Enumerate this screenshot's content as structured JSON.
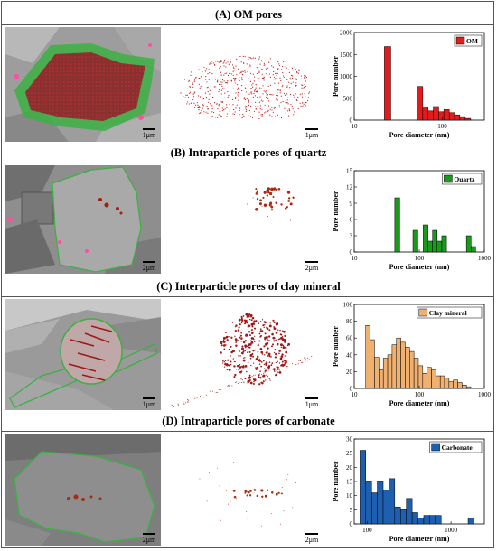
{
  "panels": [
    {
      "id": "A",
      "title": "(A) OM pores",
      "scale_bar": "1μm",
      "scale_bar_map": "1μm",
      "overlay_color": "#3cb043",
      "pore_color": "#cc2222",
      "chart_data": {
        "type": "bar",
        "xscale": "log",
        "xlim": [
          10,
          300
        ],
        "ylim": [
          0,
          2000
        ],
        "xticks": [
          "10",
          "100"
        ],
        "yticks": [
          "0",
          "500",
          "1000",
          "1500",
          "2000"
        ],
        "xlabel": "Pore diameter (nm)",
        "ylabel": "Pore number",
        "legend": "OM",
        "legend_position": "top-right",
        "color": "#e41a1c",
        "bins": [
          {
            "x0": 22,
            "x1": 26,
            "value": 1680
          },
          {
            "x0": 52,
            "x1": 60,
            "value": 770
          },
          {
            "x0": 60,
            "x1": 69,
            "value": 300
          },
          {
            "x0": 69,
            "x1": 79,
            "value": 210
          },
          {
            "x0": 79,
            "x1": 91,
            "value": 310
          },
          {
            "x0": 91,
            "x1": 104,
            "value": 190
          },
          {
            "x0": 104,
            "x1": 120,
            "value": 240
          },
          {
            "x0": 120,
            "x1": 138,
            "value": 170
          },
          {
            "x0": 138,
            "x1": 158,
            "value": 120
          },
          {
            "x0": 158,
            "x1": 182,
            "value": 80
          },
          {
            "x0": 182,
            "x1": 210,
            "value": 40
          }
        ]
      }
    },
    {
      "id": "B",
      "title": "(B) Intraparticle pores of quartz",
      "scale_bar": "2μm",
      "scale_bar_map": "2μm",
      "overlay_color": "#3cb043",
      "pore_color": "#aa2a10",
      "chart_data": {
        "type": "bar",
        "xscale": "log",
        "xlim": [
          10,
          1000
        ],
        "ylim": [
          0,
          15
        ],
        "xticks": [
          "10",
          "100",
          "1000"
        ],
        "yticks": [
          "0",
          "3",
          "6",
          "9",
          "12",
          "15"
        ],
        "xlabel": "Pore diameter (nm)",
        "ylabel": "Pore number",
        "legend": "Quartz",
        "legend_position": "top-right",
        "color": "#1a9a1a",
        "bins": [
          {
            "x0": 42,
            "x1": 50,
            "value": 10
          },
          {
            "x0": 80,
            "x1": 95,
            "value": 4
          },
          {
            "x0": 115,
            "x1": 136,
            "value": 5
          },
          {
            "x0": 136,
            "x1": 160,
            "value": 2
          },
          {
            "x0": 160,
            "x1": 188,
            "value": 4
          },
          {
            "x0": 188,
            "x1": 222,
            "value": 2
          },
          {
            "x0": 222,
            "x1": 262,
            "value": 3
          },
          {
            "x0": 530,
            "x1": 625,
            "value": 3
          },
          {
            "x0": 625,
            "x1": 735,
            "value": 1
          }
        ]
      }
    },
    {
      "id": "C",
      "title": "(C) Interparticle pores of clay mineral",
      "scale_bar": "1μm",
      "scale_bar_map": "1μm",
      "overlay_color": "#3cb043",
      "pore_color": "#a01818",
      "chart_data": {
        "type": "bar",
        "xscale": "log",
        "xlim": [
          10,
          1000
        ],
        "ylim": [
          0,
          100
        ],
        "xticks": [
          "10",
          "100",
          "1000"
        ],
        "yticks": [
          "0",
          "20",
          "40",
          "60",
          "80",
          "100"
        ],
        "xlabel": "Pore diameter (nm)",
        "ylabel": "Pore number",
        "legend": "Clay mineral",
        "legend_position": "top-right",
        "color": "#f0b070",
        "bins": [
          {
            "x0": 15.0,
            "x1": 17.5,
            "value": 75
          },
          {
            "x0": 17.5,
            "x1": 20.5,
            "value": 58
          },
          {
            "x0": 20.5,
            "x1": 24.0,
            "value": 37
          },
          {
            "x0": 24.0,
            "x1": 28.0,
            "value": 22
          },
          {
            "x0": 28.0,
            "x1": 32.7,
            "value": 36
          },
          {
            "x0": 32.7,
            "x1": 38.2,
            "value": 40
          },
          {
            "x0": 38.2,
            "x1": 44.6,
            "value": 52
          },
          {
            "x0": 44.6,
            "x1": 52.0,
            "value": 60
          },
          {
            "x0": 52.0,
            "x1": 60.8,
            "value": 55
          },
          {
            "x0": 60.8,
            "x1": 71.0,
            "value": 49
          },
          {
            "x0": 71.0,
            "x1": 82.9,
            "value": 44
          },
          {
            "x0": 82.9,
            "x1": 96.8,
            "value": 36
          },
          {
            "x0": 96.8,
            "x1": 113.0,
            "value": 27
          },
          {
            "x0": 113.0,
            "x1": 132.0,
            "value": 18
          },
          {
            "x0": 132.0,
            "x1": 154.0,
            "value": 25
          },
          {
            "x0": 154.0,
            "x1": 180.0,
            "value": 22
          },
          {
            "x0": 180.0,
            "x1": 210.0,
            "value": 15
          },
          {
            "x0": 210.0,
            "x1": 245.0,
            "value": 15
          },
          {
            "x0": 245.0,
            "x1": 286.0,
            "value": 12
          },
          {
            "x0": 286.0,
            "x1": 334.0,
            "value": 8
          },
          {
            "x0": 334.0,
            "x1": 390.0,
            "value": 10
          },
          {
            "x0": 390.0,
            "x1": 455.0,
            "value": 7
          },
          {
            "x0": 455.0,
            "x1": 531.0,
            "value": 4
          },
          {
            "x0": 531.0,
            "x1": 620.0,
            "value": 2
          }
        ]
      }
    },
    {
      "id": "D",
      "title": "(D) Intraparticle pores of carbonate",
      "scale_bar": "2μm",
      "scale_bar_map": "2μm",
      "overlay_color": "#3cb043",
      "pore_color": "#aa3010",
      "chart_data": {
        "type": "bar",
        "xscale": "log",
        "xlim": [
          70,
          2500
        ],
        "ylim": [
          0,
          30
        ],
        "xticks": [
          "100",
          "1000"
        ],
        "yticks": [
          "0",
          "5",
          "10",
          "15",
          "20",
          "25",
          "30"
        ],
        "xlabel": "Pore diameter (nm)",
        "ylabel": "Pore number",
        "legend": "Carbonate",
        "legend_position": "top-right",
        "color": "#1f5fb0",
        "bins": [
          {
            "x0": 82,
            "x1": 96,
            "value": 26
          },
          {
            "x0": 96,
            "x1": 113,
            "value": 15
          },
          {
            "x0": 113,
            "x1": 132,
            "value": 11
          },
          {
            "x0": 132,
            "x1": 155,
            "value": 15
          },
          {
            "x0": 155,
            "x1": 182,
            "value": 12
          },
          {
            "x0": 182,
            "x1": 213,
            "value": 16
          },
          {
            "x0": 213,
            "x1": 250,
            "value": 6
          },
          {
            "x0": 250,
            "x1": 293,
            "value": 5
          },
          {
            "x0": 293,
            "x1": 344,
            "value": 9
          },
          {
            "x0": 344,
            "x1": 403,
            "value": 4
          },
          {
            "x0": 403,
            "x1": 473,
            "value": 2
          },
          {
            "x0": 473,
            "x1": 555,
            "value": 3
          },
          {
            "x0": 555,
            "x1": 651,
            "value": 3
          },
          {
            "x0": 651,
            "x1": 764,
            "value": 3
          },
          {
            "x0": 1600,
            "x1": 1880,
            "value": 2
          }
        ]
      }
    }
  ]
}
